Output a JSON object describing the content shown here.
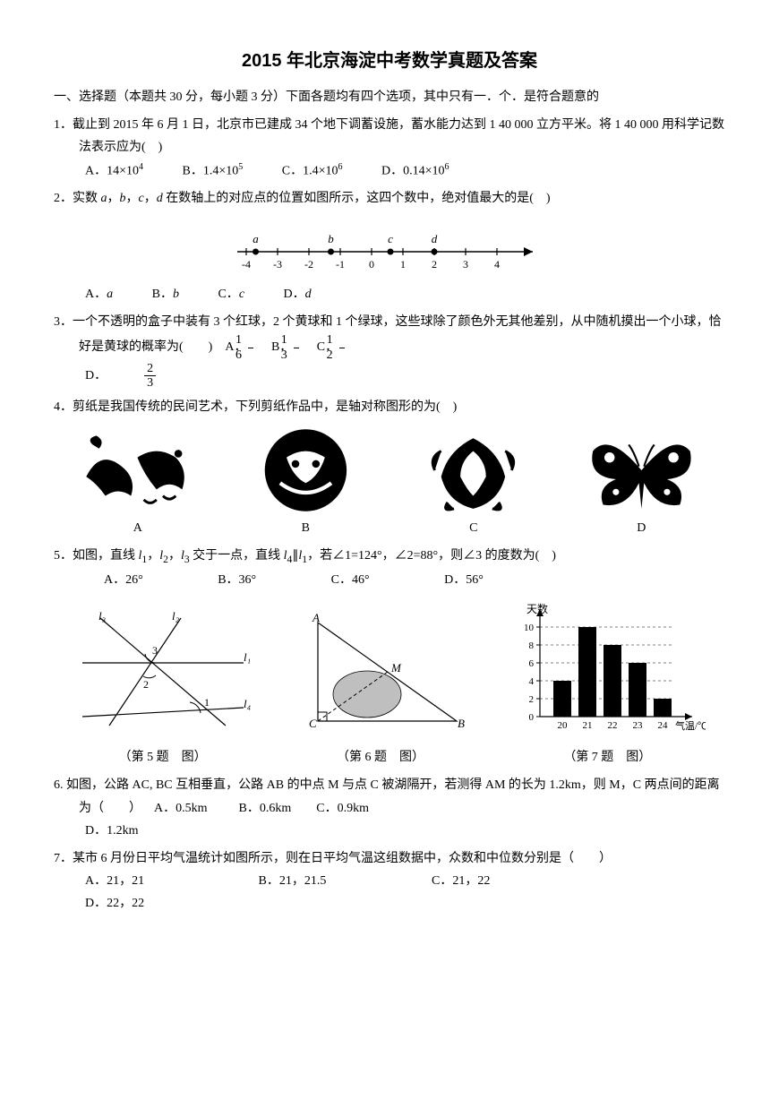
{
  "title": "2015 年北京海淀中考数学真题及答案",
  "section1": "一、选择题（本题共 30 分，每小题 3 分）下面各题均有四个选项，其中只有一．个．是符合题意的",
  "q1": {
    "stem": "1．截止到 2015 年 6 月 1 日，北京市已建成 34 个地下调蓄设施，蓄水能力达到 1 40 000 立方平米。将 1 40 000 用科学记数法表示应为(　)",
    "A": "A．14×10⁴",
    "B": "B．1.4×10⁵",
    "C": "C．1.4×10⁶",
    "D": "D．0.14×10⁶"
  },
  "q2": {
    "stem_pre": "2．实数 ",
    "stem_mid": " 在数轴上的对应点的位置如图所示，这四个数中，绝对值最大的是(　)",
    "A": "A．a",
    "B": "B．b",
    "C": "C．c",
    "D": "D．d",
    "numline": {
      "ticks": [
        -4,
        -3,
        -2,
        -1,
        0,
        1,
        2,
        3,
        4
      ],
      "points": [
        {
          "x": -3.7,
          "label": "a"
        },
        {
          "x": -1.3,
          "label": "b"
        },
        {
          "x": 0.6,
          "label": "c"
        },
        {
          "x": 2.0,
          "label": "d"
        }
      ]
    }
  },
  "q3": {
    "stem": "3．一个不透明的盒子中装有 3 个红球，2 个黄球和 1 个绿球，这些球除了颜色外无其他差别，从中随机摸出一个小球，恰好是黄球的概率为(　　)",
    "A_lbl": "A．",
    "A_n": "1",
    "A_d": "6",
    "B_lbl": "B．",
    "B_n": "1",
    "B_d": "3",
    "C_lbl": "C．",
    "C_n": "1",
    "C_d": "2",
    "D_lbl": "D．",
    "D_n": "2",
    "D_d": "3"
  },
  "q4": {
    "stem": "4．剪纸是我国传统的民间艺术，下列剪纸作品中，是轴对称图形的为(　)",
    "labels": {
      "A": "A",
      "B": "B",
      "C": "C",
      "D": "D"
    }
  },
  "q5": {
    "stem": "5．如图，直线 l₁，l₂，l₃ 交于一点，直线 l₄∥l₁，若∠1=124°，∠2=88°，则∠3 的度数为(　)",
    "A": "A．26°",
    "B": "B．36°",
    "C": "C．46°",
    "D": "D．56°"
  },
  "figs": {
    "c5": "（第 5 题　图）",
    "c6": "（第 6 题　图）",
    "c7": "（第 7 题　图）",
    "fig5_labels": {
      "l1": "l₁",
      "l2": "l₂",
      "l3": "l₃",
      "l4": "l₄",
      "a1": "1",
      "a2": "2",
      "a3": "3"
    },
    "fig6_labels": {
      "A": "A",
      "B": "B",
      "C": "C",
      "M": "M"
    },
    "fig7": {
      "ylabel": "天数",
      "xlabel": "气温/℃",
      "yticks": [
        0,
        2,
        4,
        6,
        8,
        10
      ],
      "bars": [
        {
          "x": "20",
          "v": 4
        },
        {
          "x": "21",
          "v": 10
        },
        {
          "x": "22",
          "v": 8
        },
        {
          "x": "23",
          "v": 6
        },
        {
          "x": "24",
          "v": 2
        }
      ],
      "bar_color": "#000000",
      "grid_color": "#000000"
    }
  },
  "q6": {
    "stem": "6. 如图，公路 AC, BC 互相垂直，公路 AB 的中点 M 与点 C 被湖隔开，若测得 AM 的长为 1.2km，则 M，C 两点间的距离为（　　）",
    "A": "A．0.5km",
    "B": "B．0.6km",
    "C": "C．0.9km",
    "D": "D．1.2km"
  },
  "q7": {
    "stem": "7．某市 6 月份日平均气温统计如图所示，则在日平均气温这组数据中，众数和中位数分别是（　　）",
    "A": "A．21，21",
    "B": "B．21，21.5",
    "C": "C．21，22",
    "D": "D．22，22"
  }
}
